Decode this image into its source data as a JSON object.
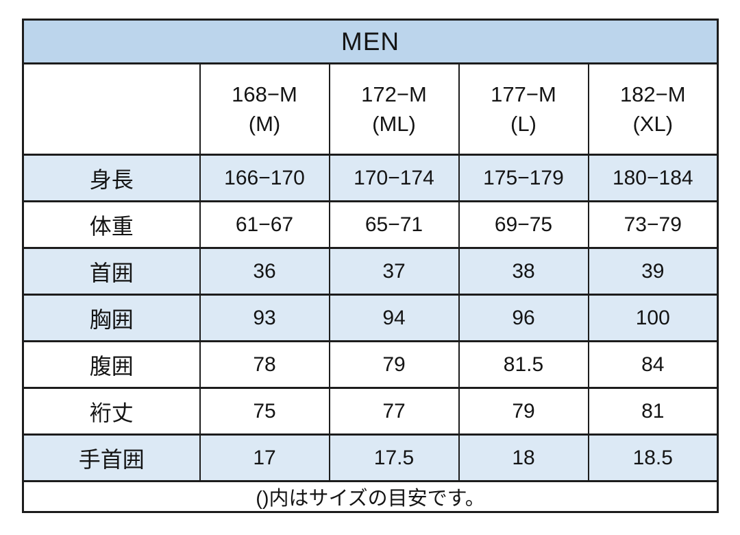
{
  "colors": {
    "title_blue": "#bcd5ec",
    "row_blue": "#dce9f5",
    "border": "#1c1c1c",
    "text": "#141414",
    "background": "#ffffff"
  },
  "chart_data": {
    "type": "table",
    "title": "MEN",
    "corner_label": "",
    "column_headers": [
      {
        "size": "168−M",
        "fit": "(M)"
      },
      {
        "size": "172−M",
        "fit": "(ML)"
      },
      {
        "size": "177−M",
        "fit": "(L)"
      },
      {
        "size": "182−M",
        "fit": "(XL)"
      }
    ],
    "rows": [
      {
        "label": "身長",
        "values": [
          "166−170",
          "170−174",
          "175−179",
          "180−184"
        ],
        "shaded": true
      },
      {
        "label": "体重",
        "values": [
          "61−67",
          "65−71",
          "69−75",
          "73−79"
        ],
        "shaded": false
      },
      {
        "label": "首囲",
        "values": [
          "36",
          "37",
          "38",
          "39"
        ],
        "shaded": true
      },
      {
        "label": "胸囲",
        "values": [
          "93",
          "94",
          "96",
          "100"
        ],
        "shaded": true
      },
      {
        "label": "腹囲",
        "values": [
          "78",
          "79",
          "81.5",
          "84"
        ],
        "shaded": false
      },
      {
        "label": "裄丈",
        "values": [
          "75",
          "77",
          "79",
          "81"
        ],
        "shaded": false
      },
      {
        "label": "手首囲",
        "values": [
          "17",
          "17.5",
          "18",
          "18.5"
        ],
        "shaded": true
      }
    ],
    "footnote": "()内はサイズの目安です。"
  }
}
